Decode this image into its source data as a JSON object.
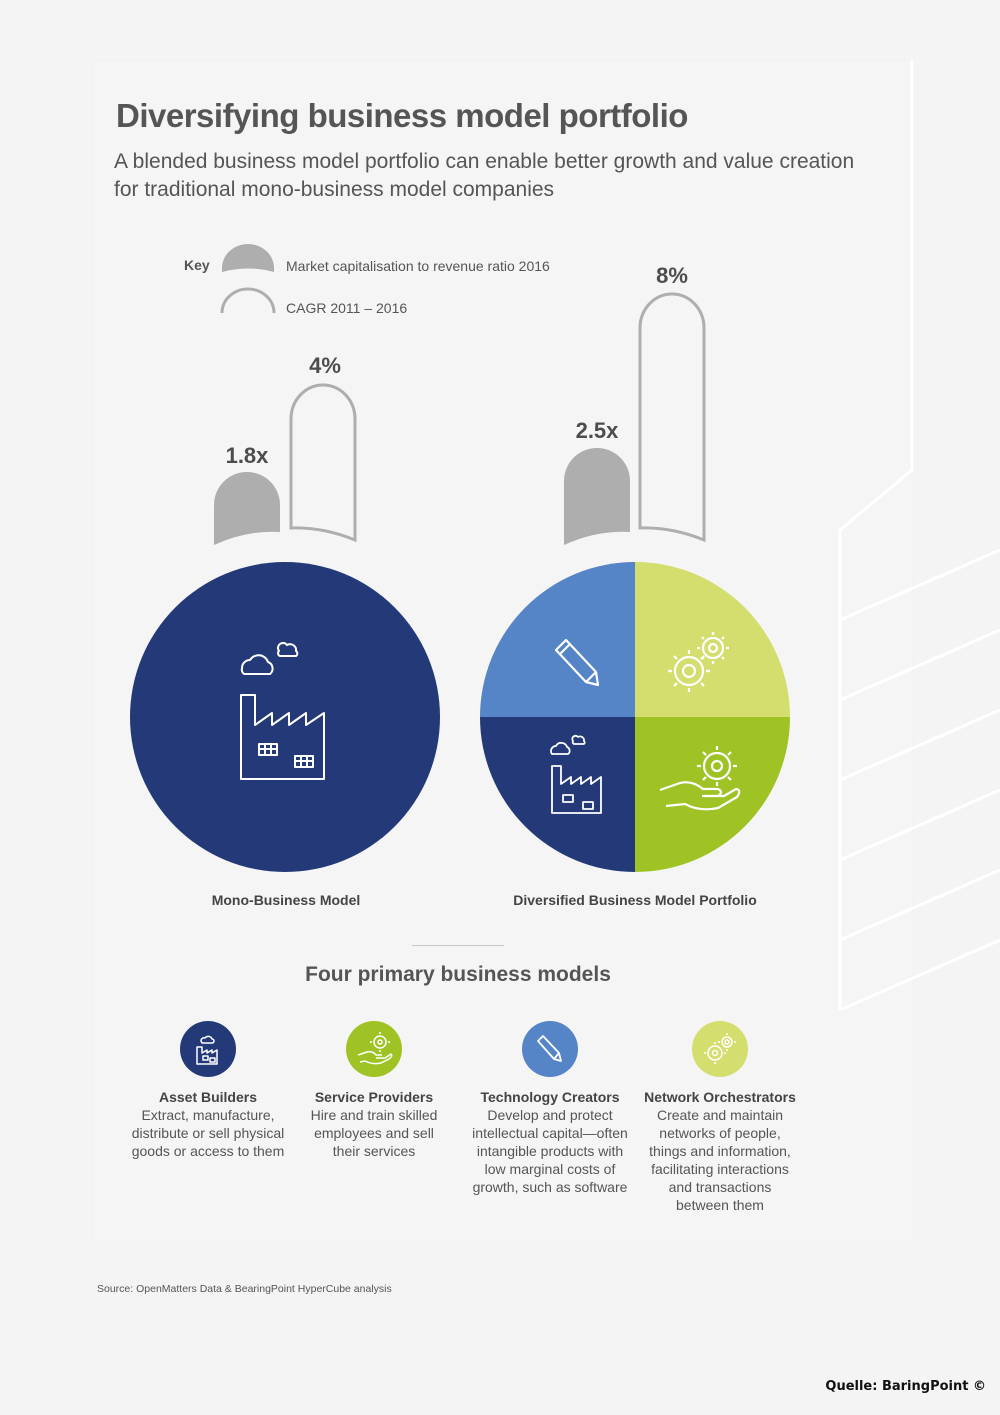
{
  "title": "Diversifying business model portfolio",
  "subtitle": "A blended business model portfolio can enable better growth and value creation for traditional mono-business model companies",
  "key": {
    "label": "Key",
    "items": [
      {
        "label": "Market capitalisation to revenue ratio 2016",
        "style": "filled"
      },
      {
        "label": "CAGR 2011 – 2016",
        "style": "outline"
      }
    ]
  },
  "portfolios": [
    {
      "label": "Mono-Business Model",
      "market_cap_ratio": "1.8x",
      "cagr": "4%",
      "color": "#243a78"
    },
    {
      "label": "Diversified Business Model Portfolio",
      "market_cap_ratio": "2.5x",
      "cagr": "8%",
      "quadrants": [
        {
          "model": "Technology Creators",
          "color": "#5585c6",
          "icon": "pencil-icon"
        },
        {
          "model": "Network Orchestrators",
          "color": "#d4de6f",
          "icon": "gears-icon"
        },
        {
          "model": "Asset Builders",
          "color": "#243a78",
          "icon": "factory-icon"
        },
        {
          "model": "Service Providers",
          "color": "#9fc224",
          "icon": "hand-gear-icon"
        }
      ]
    }
  ],
  "section_title": "Four primary business models",
  "models": [
    {
      "name": "Asset Builders",
      "desc": [
        "Extract, manufacture,",
        "distribute or sell physical",
        "goods or access to them"
      ],
      "color": "#243a78",
      "icon": "factory-icon"
    },
    {
      "name": "Service Providers",
      "desc": [
        "Hire and train skilled",
        "employees and sell",
        "their services"
      ],
      "color": "#9fc224",
      "icon": "hand-gear-icon"
    },
    {
      "name": "Technology Creators",
      "desc": [
        "Develop and protect",
        "intellectual capital—often",
        "intangible products with",
        "low marginal costs of",
        "growth, such as software"
      ],
      "color": "#5585c6",
      "icon": "pencil-icon"
    },
    {
      "name": "Network Orchestrators",
      "desc": [
        "Create and maintain",
        "networks of people,",
        "things and information,",
        "facilitating interactions",
        "and transactions",
        "between them"
      ],
      "color": "#d4de6f",
      "icon": "gears-icon"
    }
  ],
  "source": "Source: OpenMatters Data & BearingPoint HyperCube analysis",
  "credit": "Quelle: BaringPoint ©"
}
